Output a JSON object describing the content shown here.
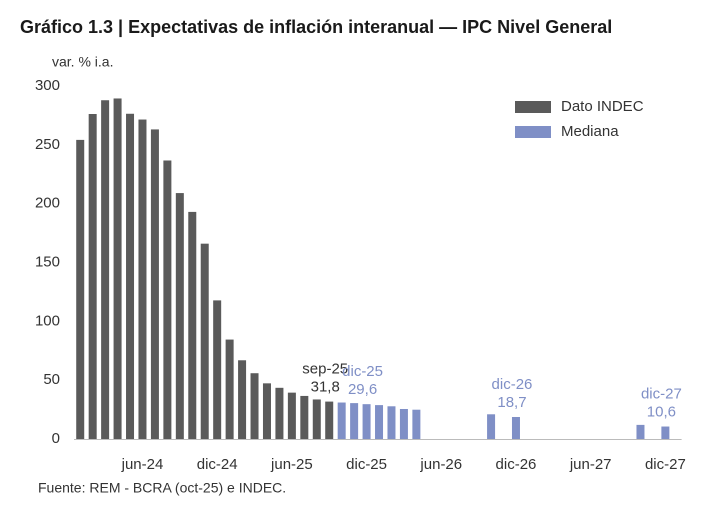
{
  "chart_data": {
    "type": "bar",
    "title": "Gráfico 1.3 | Expectativas de inflación interanual — IPC Nivel General",
    "y_label": "var. % i.a.",
    "source": "Fuente: REM - BCRA (oct-25) e INDEC.",
    "categories": [
      null,
      null,
      null,
      null,
      null,
      "jun-24",
      null,
      null,
      null,
      null,
      null,
      "dic-24",
      null,
      null,
      null,
      null,
      null,
      "jun-25",
      null,
      null,
      null,
      null,
      null,
      "dic-25",
      null,
      null,
      null,
      null,
      null,
      "jun-26",
      null,
      null,
      null,
      null,
      null,
      "dic-26",
      null,
      null,
      null,
      null,
      null,
      "jun-27",
      null,
      null,
      null,
      null,
      null,
      "dic-27"
    ],
    "series": [
      {
        "name": "Dato INDEC",
        "color": "#5a5a5a",
        "values": [
          254.2,
          276.2,
          287.9,
          289.4,
          276.4,
          271.5,
          263.1,
          236.7,
          209,
          193,
          166,
          117.8,
          84.5,
          66.9,
          55.9,
          47.3,
          43.5,
          39.4,
          36.6,
          33.6,
          31.8,
          null,
          null,
          null,
          null,
          null,
          null,
          null,
          null,
          null,
          null,
          null,
          null,
          null,
          null,
          null,
          null,
          null,
          null,
          null,
          null,
          null,
          null,
          null,
          null,
          null,
          null,
          null
        ],
        "value_labels": [
          null,
          null,
          null,
          null,
          null,
          null,
          null,
          null,
          null,
          null,
          null,
          null,
          null,
          null,
          null,
          null,
          null,
          null,
          null,
          null,
          "31,8",
          null,
          null,
          null,
          null,
          null,
          null,
          null,
          null,
          null,
          null,
          null,
          null,
          null,
          null,
          null,
          null,
          null,
          null,
          null,
          null,
          null,
          null,
          null,
          null,
          null,
          null,
          null
        ],
        "point_labels": [
          null,
          null,
          null,
          null,
          null,
          null,
          null,
          null,
          null,
          null,
          null,
          null,
          null,
          null,
          null,
          null,
          null,
          null,
          null,
          null,
          "sep-25",
          null,
          null,
          null,
          null,
          null,
          null,
          null,
          null,
          null,
          null,
          null,
          null,
          null,
          null,
          null,
          null,
          null,
          null,
          null,
          null,
          null,
          null,
          null,
          null,
          null,
          null,
          null
        ]
      },
      {
        "name": "Mediana",
        "color": "#7f8fc6",
        "values": [
          null,
          null,
          null,
          null,
          null,
          null,
          null,
          null,
          null,
          null,
          null,
          null,
          null,
          null,
          null,
          null,
          null,
          null,
          null,
          null,
          null,
          31,
          30.5,
          29.6,
          28.8,
          27.8,
          25.5,
          24.9,
          null,
          null,
          null,
          null,
          null,
          21,
          null,
          18.7,
          null,
          null,
          null,
          null,
          null,
          null,
          null,
          null,
          null,
          12,
          null,
          10.6
        ],
        "value_labels": [
          null,
          null,
          null,
          null,
          null,
          null,
          null,
          null,
          null,
          null,
          null,
          null,
          null,
          null,
          null,
          null,
          null,
          null,
          null,
          null,
          null,
          null,
          null,
          "29,6",
          null,
          null,
          null,
          null,
          null,
          null,
          null,
          null,
          null,
          null,
          null,
          "18,7",
          null,
          null,
          null,
          null,
          null,
          null,
          null,
          null,
          null,
          null,
          null,
          "10,6"
        ],
        "point_labels": [
          null,
          null,
          null,
          null,
          null,
          null,
          null,
          null,
          null,
          null,
          null,
          null,
          null,
          null,
          null,
          null,
          null,
          null,
          null,
          null,
          null,
          null,
          null,
          "dic-25",
          null,
          null,
          null,
          null,
          null,
          null,
          null,
          null,
          null,
          null,
          null,
          "dic-26",
          null,
          null,
          null,
          null,
          null,
          null,
          null,
          null,
          null,
          null,
          null,
          "dic-27"
        ]
      }
    ],
    "ylim": [
      0,
      300
    ],
    "yticks": [
      0,
      50,
      100,
      150,
      200,
      250,
      300
    ],
    "grid": false,
    "legend": "upper right"
  }
}
